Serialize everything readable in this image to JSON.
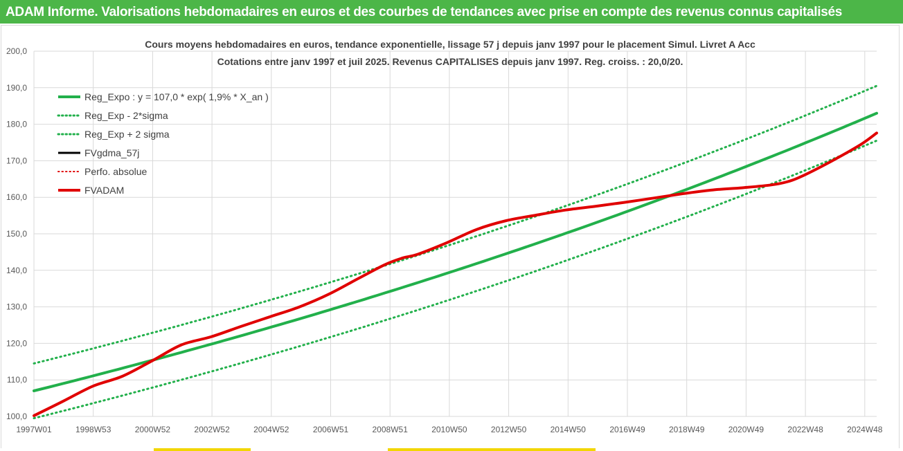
{
  "banner": {
    "title": "ADAM Informe. Valorisations hebdomadaires en euros et des courbes de tendances avec prise en compte des revenus connus capitalisés"
  },
  "colors": {
    "banner_bg": "#4cb648",
    "regression": "#22b04b",
    "band": "#22b04b",
    "fvgdma": "#000000",
    "perfo": "#e00000",
    "fvadam": "#e00000",
    "grid": "#d9d9d9"
  },
  "chart_data": {
    "type": "line",
    "title_lines": [
      "Cours moyens hebdomadaires en euros, tendance exponentielle, lissage 57 j depuis janv 1997 pour le placement Simul. Livret A Acc",
      "Cotations entre janv 1997 et juil 2025. Revenus CAPITALISES depuis janv 1997. Reg. croiss. : 20,0/20."
    ],
    "x_ticks": [
      "1997W01",
      "1998W53",
      "2000W52",
      "2002W52",
      "2004W52",
      "2006W51",
      "2008W51",
      "2010W50",
      "2012W50",
      "2014W50",
      "2016W49",
      "2018W49",
      "2020W49",
      "2022W48",
      "2024W48"
    ],
    "x_range": [
      1997.0,
      2025.55
    ],
    "y_ticks": [
      "100,0",
      "110,0",
      "120,0",
      "130,0",
      "140,0",
      "150,0",
      "160,0",
      "170,0",
      "180,0",
      "190,0",
      "200,0"
    ],
    "ylim": [
      100,
      200
    ],
    "grid": true,
    "legend_position": "top-left",
    "legend": [
      {
        "label": "Reg_Expo : y = 107,0 * exp( 1,9% *  X_an )",
        "color": "#22b04b",
        "style": "solid",
        "width": 4
      },
      {
        "label": "Reg_Exp - 2*sigma",
        "color": "#22b04b",
        "style": "dotted",
        "width": 3
      },
      {
        "label": "Reg_Exp + 2 sigma",
        "color": "#22b04b",
        "style": "dotted",
        "width": 3
      },
      {
        "label": "FVgdma_57j",
        "color": "#000000",
        "style": "solid",
        "width": 3
      },
      {
        "label": "Perfo. absolue",
        "color": "#e00000",
        "style": "dotted",
        "width": 2
      },
      {
        "label": "FVADAM",
        "color": "#e00000",
        "style": "solid",
        "width": 4
      }
    ],
    "series": [
      {
        "name": "Reg_Expo : y = 107,0 * exp( 1,9% *  X_an )",
        "style": "solid",
        "color": "#22b04b",
        "x": [
          1997.0,
          2025.55
        ],
        "model": {
          "a": 107.0,
          "b": 0.0188,
          "offset": 0
        }
      },
      {
        "name": "Reg_Exp - 2*sigma",
        "style": "dotted",
        "color": "#22b04b",
        "x": [
          1997.0,
          2025.55
        ],
        "model": {
          "a": 107.0,
          "b": 0.0188,
          "offset": -7.5
        }
      },
      {
        "name": "Reg_Exp + 2 sigma",
        "style": "dotted",
        "color": "#22b04b",
        "x": [
          1997.0,
          2025.55
        ],
        "model": {
          "a": 107.0,
          "b": 0.0188,
          "offset": 7.5
        }
      },
      {
        "name": "FVADAM",
        "style": "solid",
        "color": "#e00000",
        "x": [
          1997.0,
          1998.0,
          1999.0,
          2000.0,
          2001.0,
          2002.0,
          2003.0,
          2004.0,
          2005.0,
          2006.0,
          2007.0,
          2008.0,
          2008.9,
          2009.5,
          2010.0,
          2011.0,
          2012.0,
          2013.0,
          2014.0,
          2015.0,
          2016.0,
          2017.0,
          2018.0,
          2019.0,
          2020.0,
          2021.0,
          2022.0,
          2022.5,
          2023.0,
          2024.0,
          2025.0,
          2025.55
        ],
        "y": [
          100.2,
          104.2,
          108.3,
          111.0,
          115.2,
          119.6,
          121.8,
          124.6,
          127.3,
          130.0,
          133.5,
          137.8,
          141.6,
          143.4,
          144.4,
          147.6,
          151.2,
          153.6,
          155.1,
          156.5,
          157.5,
          158.6,
          159.8,
          161.0,
          162.0,
          162.6,
          163.4,
          164.2,
          165.7,
          169.8,
          174.4,
          177.6
        ]
      }
    ]
  }
}
